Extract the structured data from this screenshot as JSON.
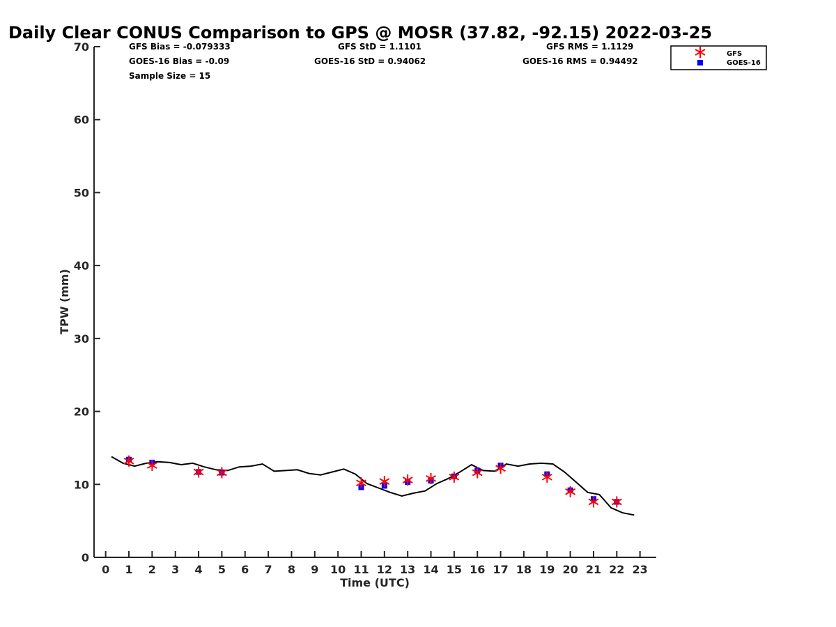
{
  "chart_data": {
    "type": "scatter",
    "title": "Daily Clear CONUS Comparison to GPS @ MOSR (37.82, -92.15) 2022-03-25",
    "xlabel": "Time (UTC)",
    "ylabel": "TPW (mm)",
    "xlim": [
      -0.5,
      23.7
    ],
    "ylim": [
      0,
      70
    ],
    "x_ticks": [
      0,
      1,
      2,
      3,
      4,
      5,
      6,
      7,
      8,
      9,
      10,
      11,
      12,
      13,
      14,
      15,
      16,
      17,
      18,
      19,
      20,
      21,
      22,
      23
    ],
    "y_ticks": [
      0,
      10,
      20,
      30,
      40,
      50,
      60,
      70
    ],
    "grid": false,
    "legend_position": "top-right",
    "stats": {
      "gfs_bias": "GFS Bias = -0.079333",
      "goes_bias": "GOES-16 Bias = -0.09",
      "sample_size": "Sample Size = 15",
      "gfs_std": "GFS StD = 1.1101",
      "goes_std": "GOES-16 StD = 0.94062",
      "gfs_rms": "GFS RMS = 1.1129",
      "goes_rms": "GOES-16 RMS = 0.94492"
    },
    "series": [
      {
        "name": "GFS",
        "marker": "star",
        "color": "#ff0000",
        "x": [
          1,
          2,
          4,
          5,
          11,
          12,
          13,
          14,
          15,
          16,
          17,
          19,
          20,
          21,
          22
        ],
        "y": [
          13.2,
          12.6,
          11.7,
          11.6,
          10.2,
          10.4,
          10.6,
          10.8,
          11.0,
          11.6,
          12.2,
          11.0,
          9.0,
          7.6,
          7.6
        ]
      },
      {
        "name": "GOES-16",
        "marker": "square",
        "color": "#0000ff",
        "x": [
          1,
          2,
          4,
          5,
          11,
          12,
          13,
          14,
          15,
          16,
          17,
          19,
          20,
          21,
          22
        ],
        "y": [
          13.4,
          13.0,
          11.7,
          11.6,
          9.6,
          9.8,
          10.3,
          10.5,
          11.1,
          11.9,
          12.6,
          11.4,
          9.2,
          8.0,
          7.6
        ]
      },
      {
        "name": "",
        "marker": "line",
        "color": "#000000",
        "x": [
          0.25,
          0.75,
          1.25,
          1.75,
          2.25,
          2.75,
          3.25,
          3.75,
          4.25,
          4.75,
          5.25,
          5.75,
          6.25,
          6.75,
          7.25,
          7.75,
          8.25,
          8.75,
          9.25,
          9.75,
          10.25,
          10.75,
          11.25,
          11.75,
          12.25,
          12.75,
          13.25,
          13.75,
          14.25,
          14.75,
          15.25,
          15.75,
          16.25,
          16.75,
          17.25,
          17.75,
          18.25,
          18.75,
          19.25,
          19.75,
          20.25,
          20.75,
          21.25,
          21.75,
          22.25,
          22.75
        ],
        "y": [
          13.8,
          12.9,
          12.5,
          12.9,
          13.1,
          13.0,
          12.7,
          12.9,
          12.4,
          12.0,
          11.9,
          12.4,
          12.5,
          12.8,
          11.8,
          11.9,
          12.0,
          11.5,
          11.3,
          11.7,
          12.1,
          11.4,
          10.1,
          9.5,
          8.9,
          8.4,
          8.8,
          9.1,
          10.1,
          10.8,
          11.7,
          12.7,
          11.9,
          11.8,
          12.8,
          12.5,
          12.8,
          12.9,
          12.8,
          11.7,
          10.3,
          8.9,
          8.6,
          6.8,
          6.1,
          5.8
        ]
      }
    ]
  }
}
